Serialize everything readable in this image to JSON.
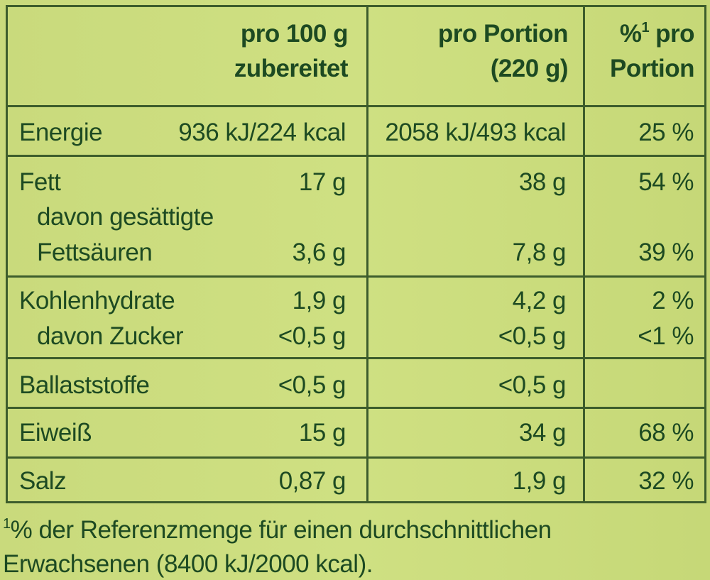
{
  "header": {
    "columns": [
      {
        "line1": "pro 100 g",
        "line2": "zubereitet"
      },
      {
        "line1": "pro Portion",
        "line2": "(220 g)"
      },
      {
        "symbol": "%",
        "superscript": "1",
        "line1": "pro",
        "line2": "Portion"
      }
    ]
  },
  "rows": [
    {
      "label": "Energie",
      "per_100g": "936 kJ/224 kcal",
      "per_portion": "2058 kJ/493 kcal",
      "percent": "25 %"
    },
    {
      "label": "Fett",
      "per_100g": "17 g",
      "per_portion": "38 g",
      "percent": "54 %"
    },
    {
      "label_line1": "davon gesättigte",
      "label_line2": "Fettsäuren",
      "per_100g": "3,6 g",
      "per_portion": "7,8 g",
      "percent": "39 %"
    },
    {
      "label": "Kohlenhydrate",
      "per_100g": "1,9 g",
      "per_portion": "4,2 g",
      "percent": "2 %"
    },
    {
      "label": "davon Zucker",
      "per_100g": "<0,5 g",
      "per_portion": "<0,5 g",
      "percent": "<1 %"
    },
    {
      "label": "Ballaststoffe",
      "per_100g": "<0,5 g",
      "per_portion": "<0,5 g"
    },
    {
      "label": "Eiweiß",
      "per_100g": "15 g",
      "per_portion": "34 g",
      "percent": "68 %"
    },
    {
      "label": "Salz",
      "per_100g": "0,87 g",
      "per_portion": "1,9 g",
      "percent": "32 %"
    }
  ],
  "footnote": {
    "marker": "1",
    "line1": "% der Referenzmenge für einen durchschnittlichen",
    "line2": "Erwachsenen (8400 kJ/2000 kcal)."
  }
}
